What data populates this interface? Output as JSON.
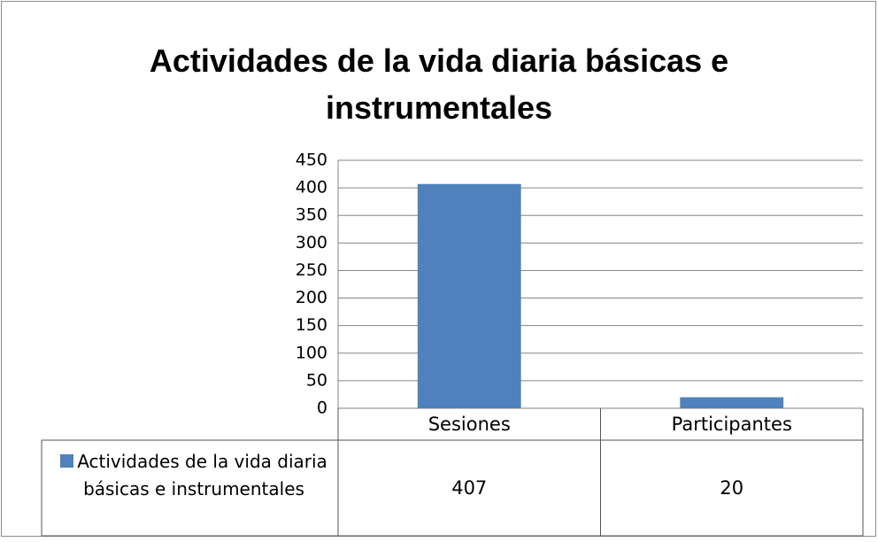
{
  "chart_data": {
    "type": "bar",
    "title": "Actividades de la vida diaria básicas e instrumentales",
    "categories": [
      "Sesiones",
      "Participantes"
    ],
    "series": [
      {
        "name": "Actividades de la vida diaria básicas e instrumentales",
        "color": "#4f81bd",
        "values": [
          407,
          20
        ]
      }
    ],
    "ylim": [
      0,
      450
    ],
    "yticks": [
      0,
      50,
      100,
      150,
      200,
      250,
      300,
      350,
      400,
      450
    ],
    "grid": true,
    "data_table": true
  }
}
